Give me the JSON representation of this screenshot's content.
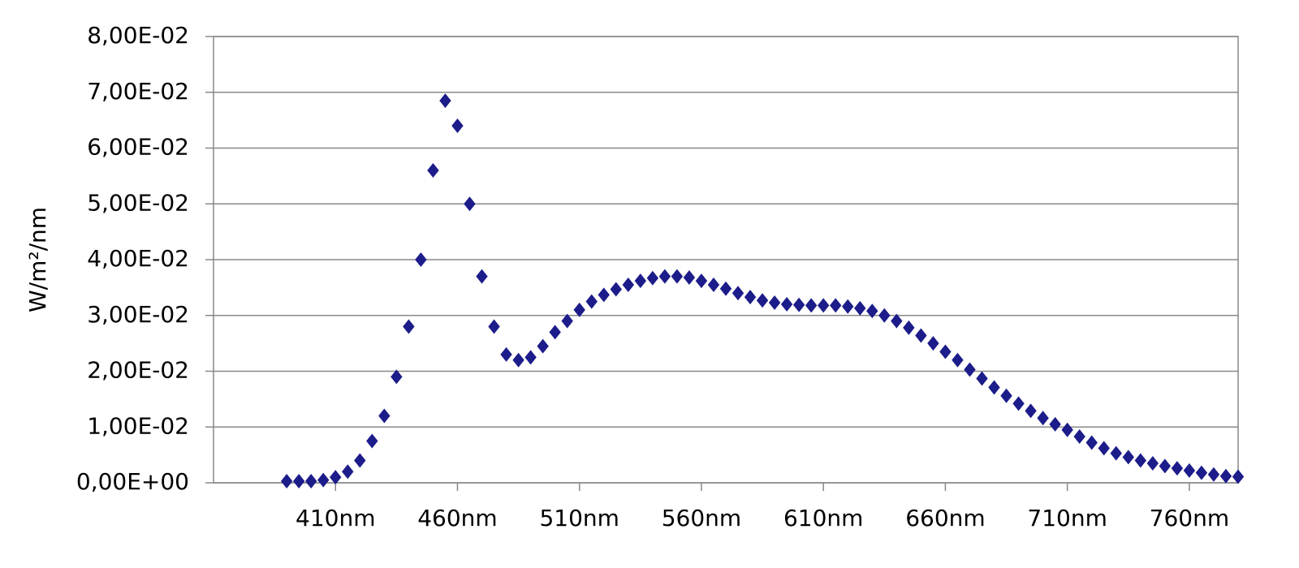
{
  "chart_data": {
    "type": "scatter",
    "y_label": "W/m²/nm",
    "x": [
      390,
      395,
      400,
      405,
      410,
      415,
      420,
      425,
      430,
      435,
      440,
      445,
      450,
      455,
      460,
      465,
      470,
      475,
      480,
      485,
      490,
      495,
      500,
      505,
      510,
      515,
      520,
      525,
      530,
      535,
      540,
      545,
      550,
      555,
      560,
      565,
      570,
      575,
      580,
      585,
      590,
      595,
      600,
      605,
      610,
      615,
      620,
      625,
      630,
      635,
      640,
      645,
      650,
      655,
      660,
      665,
      670,
      675,
      680,
      685,
      690,
      695,
      700,
      705,
      710,
      715,
      720,
      725,
      730,
      735,
      740,
      745,
      750,
      755,
      760,
      765,
      770,
      775,
      780
    ],
    "values": [
      0.0003,
      0.0003,
      0.0003,
      0.0005,
      0.001,
      0.002,
      0.004,
      0.0075,
      0.012,
      0.019,
      0.028,
      0.04,
      0.056,
      0.0685,
      0.064,
      0.05,
      0.037,
      0.028,
      0.023,
      0.022,
      0.0225,
      0.0245,
      0.027,
      0.029,
      0.031,
      0.0325,
      0.0337,
      0.0347,
      0.0355,
      0.0362,
      0.0367,
      0.037,
      0.037,
      0.0368,
      0.0362,
      0.0355,
      0.0348,
      0.034,
      0.0333,
      0.0327,
      0.0323,
      0.032,
      0.0319,
      0.0318,
      0.0318,
      0.0318,
      0.0316,
      0.0313,
      0.0308,
      0.03,
      0.029,
      0.0278,
      0.0264,
      0.025,
      0.0235,
      0.022,
      0.0203,
      0.0187,
      0.0171,
      0.0156,
      0.0142,
      0.0129,
      0.0116,
      0.0105,
      0.0095,
      0.0083,
      0.0072,
      0.0062,
      0.0053,
      0.0046,
      0.004,
      0.0035,
      0.003,
      0.0026,
      0.0022,
      0.0018,
      0.0015,
      0.0012,
      0.0011
    ],
    "color": "#1c1c8a",
    "xlim": [
      360,
      780
    ],
    "xticks": [
      {
        "value": 410,
        "label": "410nm"
      },
      {
        "value": 460,
        "label": "460nm"
      },
      {
        "value": 510,
        "label": "510nm"
      },
      {
        "value": 560,
        "label": "560nm"
      },
      {
        "value": 610,
        "label": "610nm"
      },
      {
        "value": 660,
        "label": "660nm"
      },
      {
        "value": 710,
        "label": "710nm"
      },
      {
        "value": 760,
        "label": "760nm"
      }
    ],
    "ylim": [
      0,
      0.08
    ],
    "yticks": [
      {
        "value": 0,
        "label": "0,00E+00"
      },
      {
        "value": 0.01,
        "label": "1,00E-02"
      },
      {
        "value": 0.02,
        "label": "2,00E-02"
      },
      {
        "value": 0.03,
        "label": "3,00E-02"
      },
      {
        "value": 0.04,
        "label": "4,00E-02"
      },
      {
        "value": 0.05,
        "label": "5,00E-02"
      },
      {
        "value": 0.06,
        "label": "6,00E-02"
      },
      {
        "value": 0.07,
        "label": "7,00E-02"
      },
      {
        "value": 0.08,
        "label": "8,00E-02"
      }
    ],
    "grid": true
  }
}
